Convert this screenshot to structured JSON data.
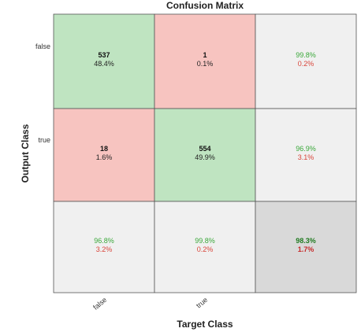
{
  "colors": {
    "correct_fill": "#bfe4c1",
    "error_fill": "#f7c4c0",
    "summary_fill": "#f0f0f0",
    "total_fill": "#d9d9d9",
    "good_text": "#3aa83a",
    "bad_text": "#d9453a",
    "total_good_text": "#1f7a1f",
    "total_bad_text": "#c62828"
  },
  "chart_data": {
    "type": "heatmap",
    "title": "Confusion Matrix",
    "xlabel": "Target Class",
    "ylabel": "Output Class",
    "classes": [
      "false",
      "true"
    ],
    "cells": [
      [
        {
          "count": "537",
          "pct": "48.4%"
        },
        {
          "count": "1",
          "pct": "0.1%"
        }
      ],
      [
        {
          "count": "18",
          "pct": "1.6%"
        },
        {
          "count": "554",
          "pct": "49.9%"
        }
      ]
    ],
    "row_summary": [
      {
        "correct": "99.8%",
        "error": "0.2%"
      },
      {
        "correct": "96.9%",
        "error": "3.1%"
      }
    ],
    "col_summary": [
      {
        "correct": "96.8%",
        "error": "3.2%"
      },
      {
        "correct": "99.8%",
        "error": "0.2%"
      }
    ],
    "total": {
      "correct": "98.3%",
      "error": "1.7%"
    }
  }
}
